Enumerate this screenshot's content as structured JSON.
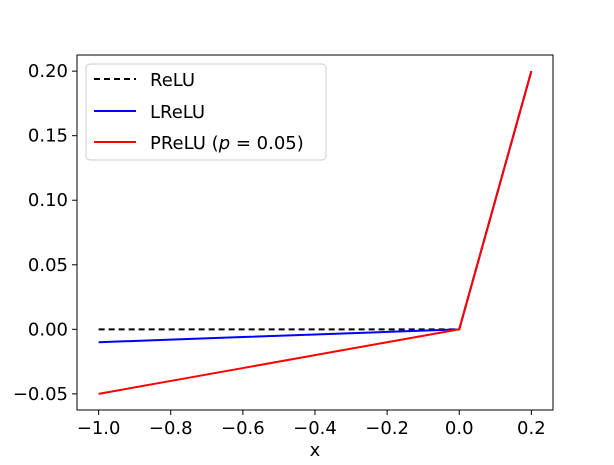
{
  "chart_data": {
    "type": "line",
    "title": "",
    "xlabel": "x",
    "ylabel": "",
    "xlim": [
      -1.06,
      0.26
    ],
    "ylim": [
      -0.0625,
      0.2125
    ],
    "grid": false,
    "legend_position": "top-left",
    "x_ticks": [
      -1.0,
      -0.8,
      -0.6,
      -0.4,
      -0.2,
      0.0,
      0.2
    ],
    "x_tick_labels": [
      "−1.0",
      "−0.8",
      "−0.6",
      "−0.4",
      "−0.2",
      "0.0",
      "0.2"
    ],
    "y_ticks": [
      -0.05,
      0.0,
      0.05,
      0.1,
      0.15,
      0.2
    ],
    "y_tick_labels": [
      "−0.05",
      "0.00",
      "0.05",
      "0.10",
      "0.15",
      "0.20"
    ],
    "series": [
      {
        "name": "ReLU",
        "color": "#000000",
        "dashed": true,
        "x": [
          -1.0,
          -0.8,
          -0.6,
          -0.4,
          -0.2,
          -0.02,
          0.0,
          0.2
        ],
        "y": [
          0.0,
          0.0,
          0.0,
          0.0,
          0.0,
          0.0,
          0.0,
          0.2
        ]
      },
      {
        "name": "LReLU",
        "color": "#0000ff",
        "dashed": false,
        "x": [
          -1.0,
          -0.8,
          -0.6,
          -0.4,
          -0.2,
          -0.02,
          0.0,
          0.2
        ],
        "y": [
          -0.01,
          -0.008,
          -0.006,
          -0.004,
          -0.002,
          -0.0002,
          0.0,
          0.2
        ]
      },
      {
        "name_main": "PReLU (",
        "name_var": "p",
        "name_rest": " = 0.05)",
        "color": "#ff0000",
        "dashed": false,
        "x": [
          -1.0,
          -0.8,
          -0.6,
          -0.4,
          -0.2,
          -0.02,
          0.0,
          0.2
        ],
        "y": [
          -0.05,
          -0.04,
          -0.03,
          -0.02,
          -0.01,
          -0.001,
          0.0,
          0.2
        ]
      }
    ]
  }
}
